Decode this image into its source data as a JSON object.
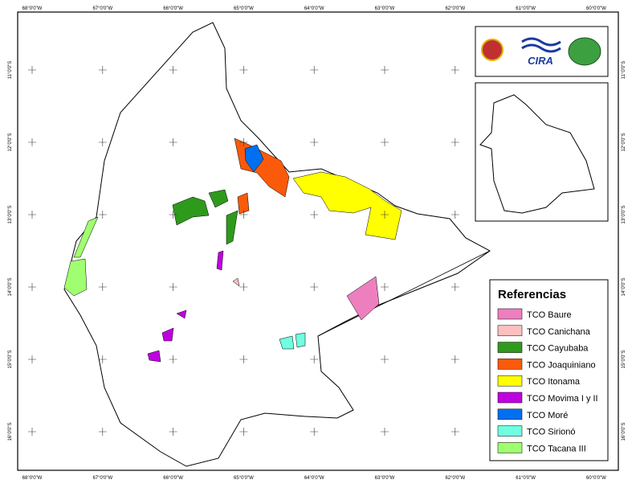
{
  "graticule": {
    "longitudes": [
      "68°0'0\"W",
      "67°0'0\"W",
      "66°0'0\"W",
      "65°0'0\"W",
      "64°0'0\"W",
      "63°0'0\"W",
      "62°0'0\"W",
      "61°0'0\"W",
      "60°0'0\"W"
    ],
    "latitudes": [
      "11°0'0\"S",
      "12°0'0\"S",
      "13°0'0\"S",
      "14°0'0\"S",
      "15°0'0\"S",
      "16°0'0\"S"
    ]
  },
  "logos": {
    "cira": "CIRA"
  },
  "legend": {
    "title": "Referencias",
    "items": [
      {
        "label": "TCO Baure",
        "color": "#ee7fbf"
      },
      {
        "label": "TCO Canichana",
        "color": "#fcc0c0"
      },
      {
        "label": "TCO Cayubaba",
        "color": "#2e9a1c"
      },
      {
        "label": "TCO Joaquiniano",
        "color": "#fa5a0a"
      },
      {
        "label": "TCO Itonama",
        "color": "#ffff00"
      },
      {
        "label": "TCO Movima I y II",
        "color": "#c000e0"
      },
      {
        "label": "TCO Moré",
        "color": "#0070f0"
      },
      {
        "label": "TCO Sirionó",
        "color": "#70ffe0"
      },
      {
        "label": "TCO Tacana III",
        "color": "#a0ff70"
      }
    ]
  }
}
